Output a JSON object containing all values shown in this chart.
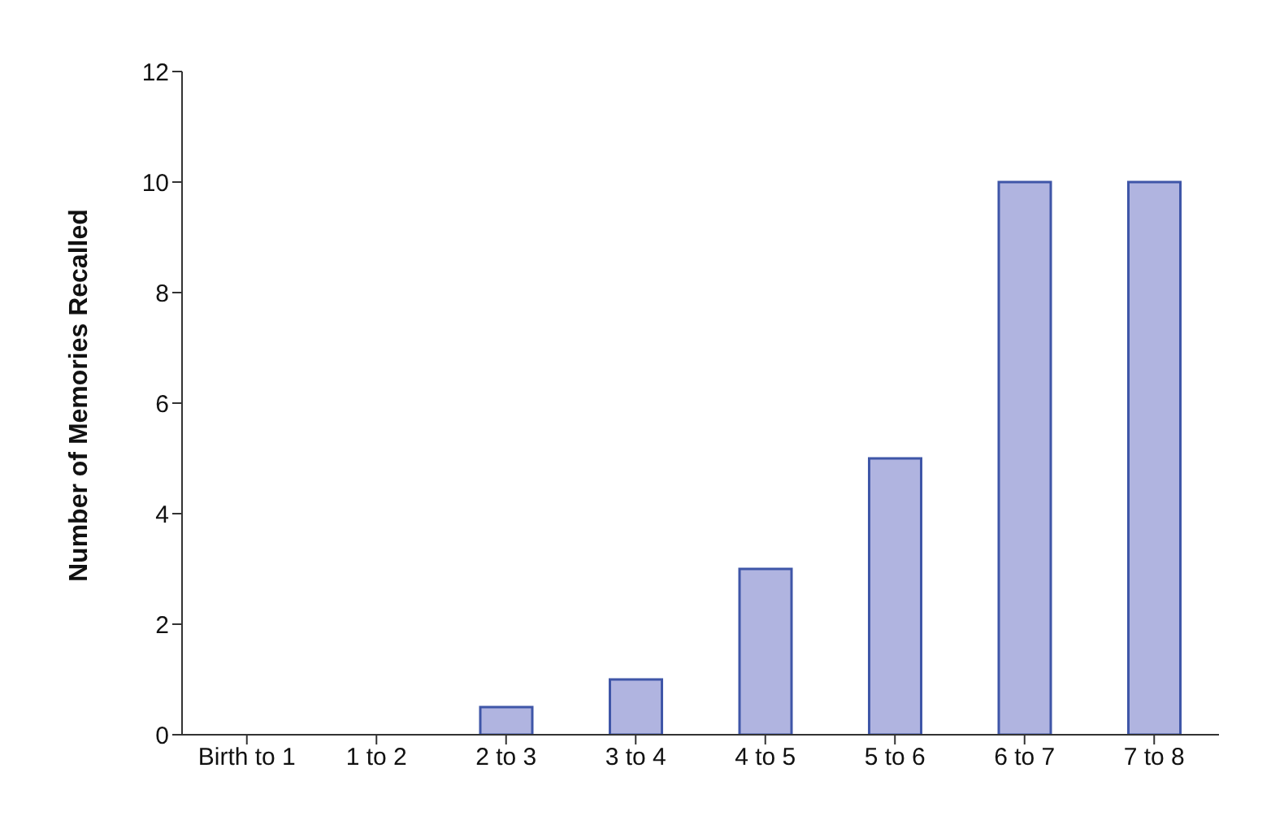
{
  "chart_data": {
    "type": "bar",
    "ylabel": "Number of Memories Recalled",
    "categories": [
      "Birth to 1",
      "1 to 2",
      "2 to 3",
      "3 to 4",
      "4 to 5",
      "5 to 6",
      "6 to 7",
      "7 to 8"
    ],
    "values": [
      0,
      0,
      0.5,
      1,
      3,
      5,
      10,
      10
    ],
    "color": "#b0b4e0",
    "ylim": [
      0,
      12
    ],
    "yticks": [
      0,
      2,
      4,
      6,
      8,
      10,
      12
    ],
    "grid": false,
    "legend": false
  }
}
